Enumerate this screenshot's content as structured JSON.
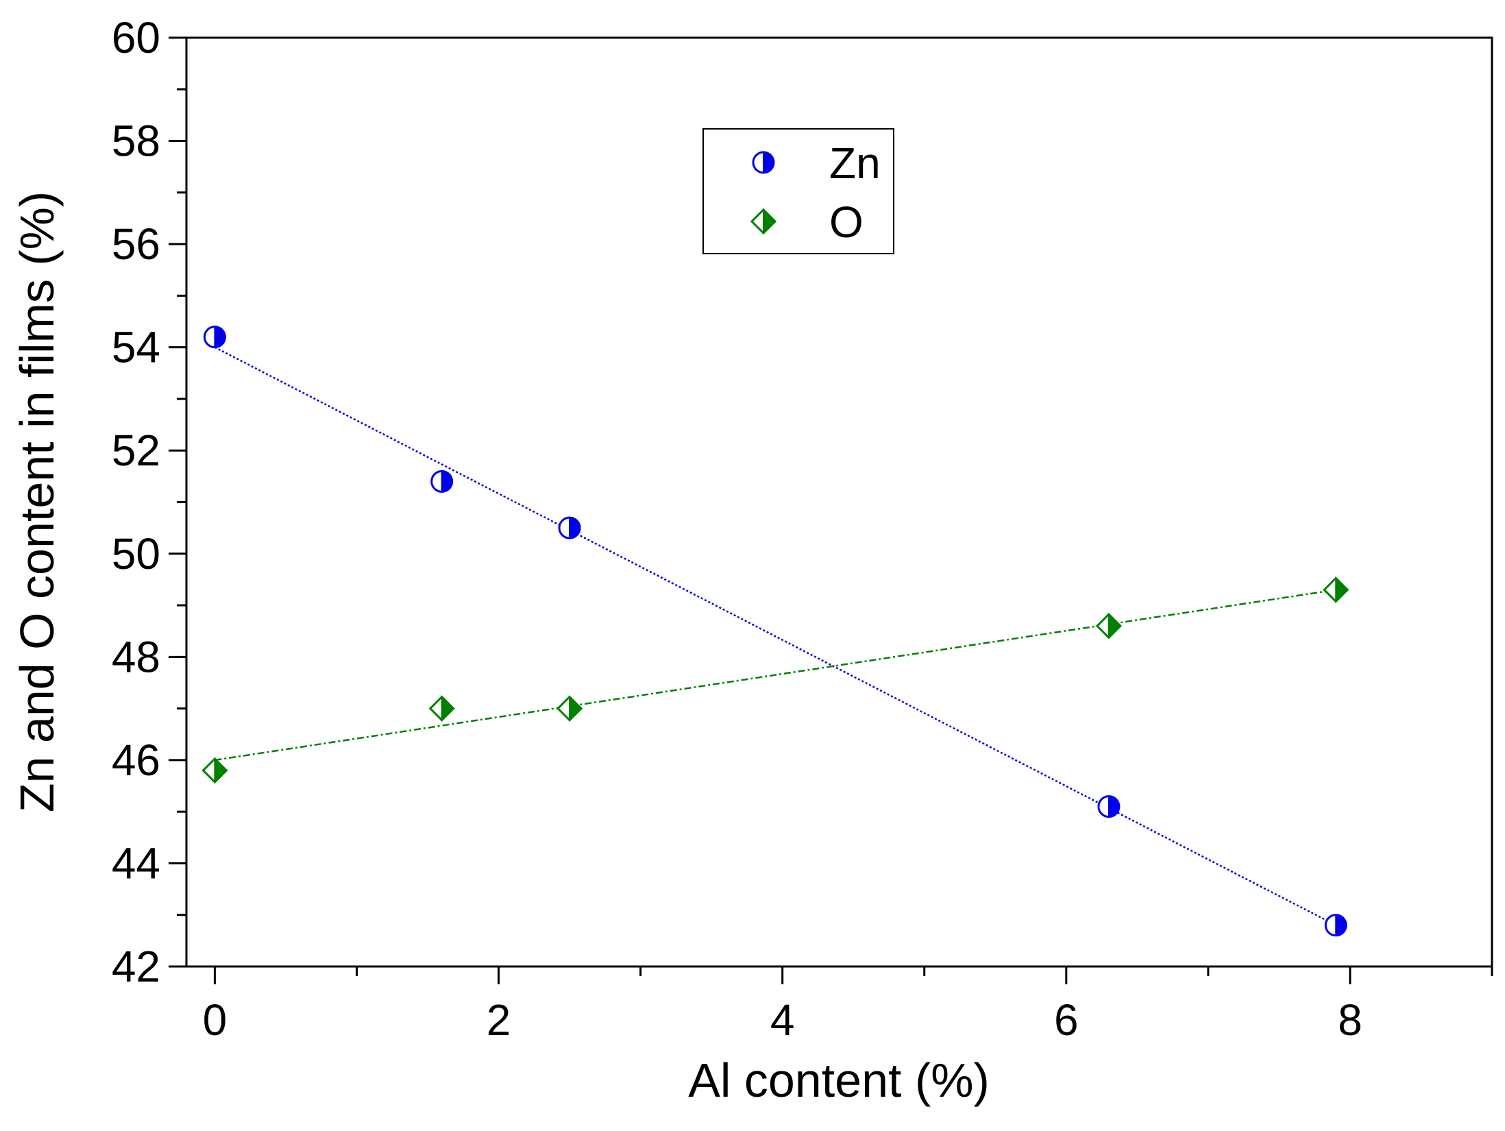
{
  "chart_data": {
    "type": "scatter",
    "title": "",
    "xlabel": "Al content (%)",
    "ylabel": "Zn and O content in films (%)",
    "xlim": [
      -0.2,
      9
    ],
    "ylim": [
      42,
      60
    ],
    "xticks": [
      0,
      2,
      4,
      6,
      8
    ],
    "xtick_labels": [
      "0",
      "2",
      "4",
      "6",
      "8"
    ],
    "yticks": [
      42,
      44,
      46,
      48,
      50,
      52,
      54,
      56,
      58,
      60
    ],
    "ytick_labels": [
      "42",
      "44",
      "46",
      "48",
      "50",
      "52",
      "54",
      "56",
      "58",
      "60"
    ],
    "grid": false,
    "legend_position": "top-center",
    "series": [
      {
        "name": "Zn",
        "color": "#0000ee",
        "marker": "half-filled-circle",
        "x": [
          0,
          1.6,
          2.5,
          6.3,
          7.9
        ],
        "y": [
          54.2,
          51.4,
          50.5,
          45.1,
          42.8
        ],
        "fit_line": {
          "x": [
            0,
            7.9
          ],
          "y": [
            54.0,
            42.8
          ],
          "style": "dotted"
        }
      },
      {
        "name": "O",
        "color": "#008000",
        "marker": "half-filled-diamond",
        "x": [
          0,
          1.6,
          2.5,
          6.3,
          7.9
        ],
        "y": [
          45.8,
          47.0,
          47.0,
          48.6,
          49.3
        ],
        "fit_line": {
          "x": [
            0,
            7.9
          ],
          "y": [
            46.0,
            49.3
          ],
          "style": "dash-dot"
        }
      }
    ]
  }
}
